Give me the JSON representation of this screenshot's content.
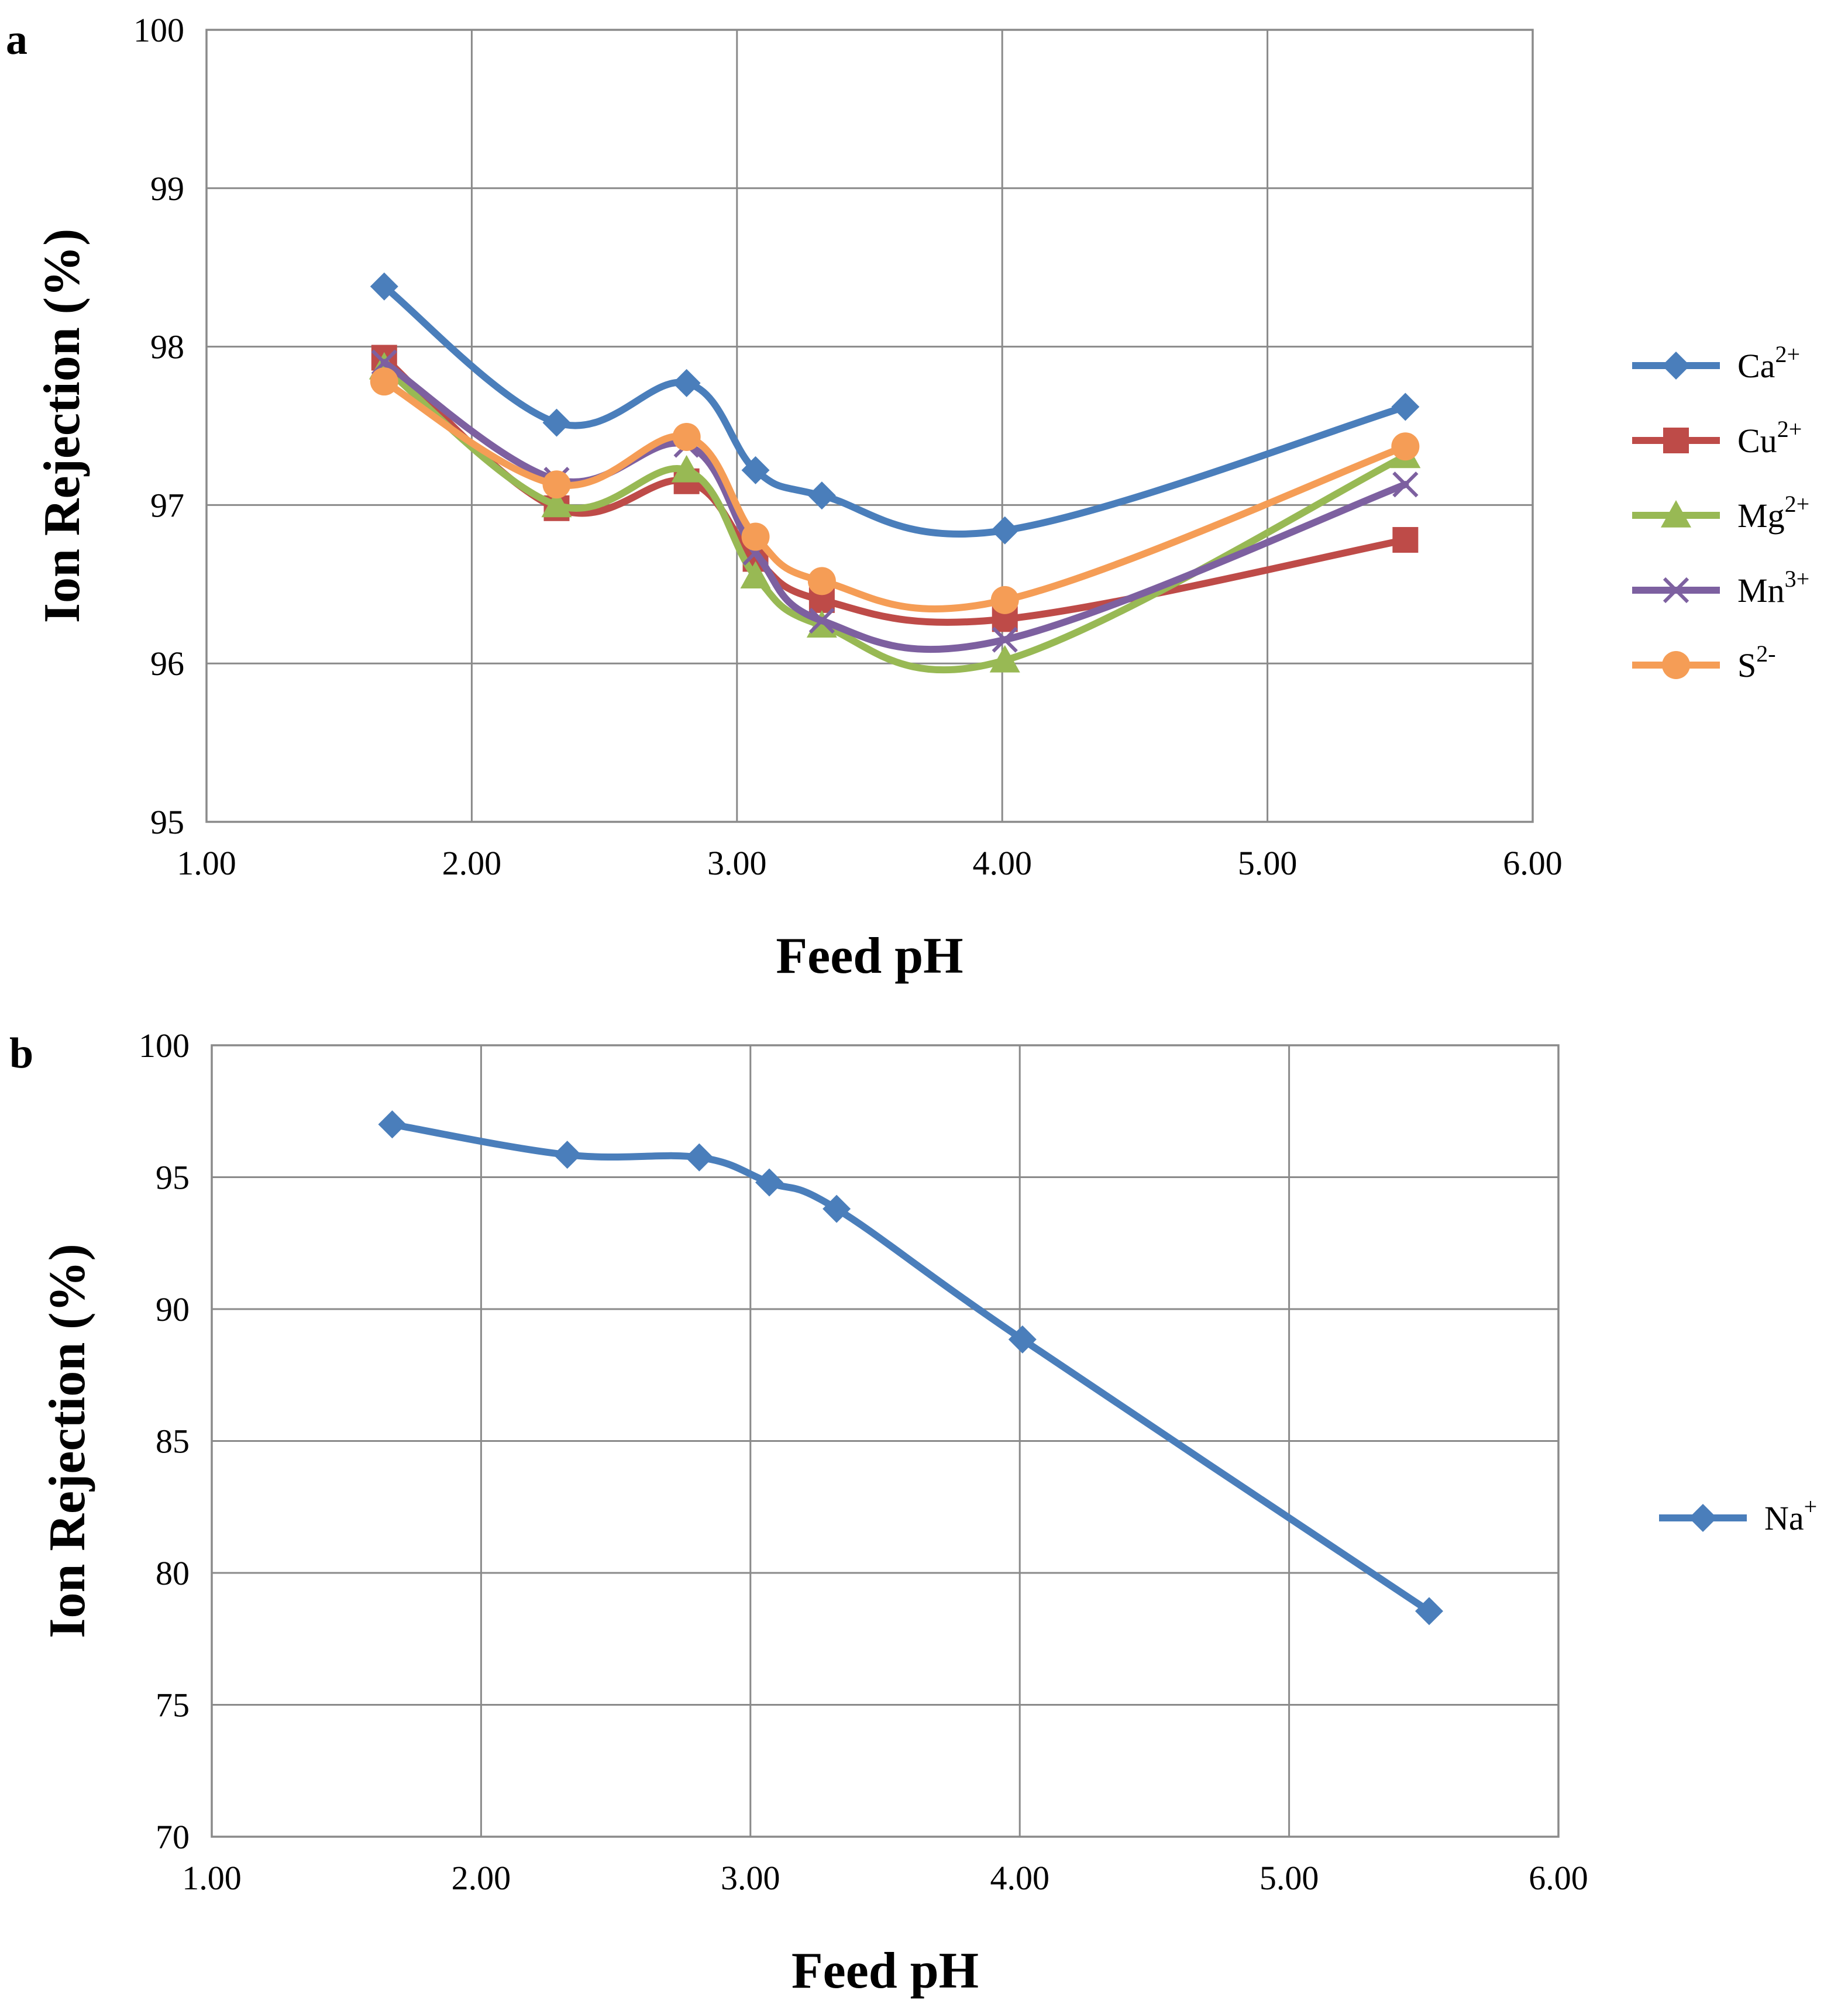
{
  "chart_data": [
    {
      "panel": "a",
      "type": "line",
      "xlabel": "Feed pH",
      "ylabel": "Ion Rejection (%)",
      "xlim": [
        1.0,
        6.0
      ],
      "ylim": [
        95,
        100
      ],
      "x_ticks": [
        "1.00",
        "2.00",
        "3.00",
        "4.00",
        "5.00",
        "6.00"
      ],
      "y_ticks": [
        "95",
        "96",
        "97",
        "98",
        "99",
        "100"
      ],
      "grid": true,
      "legend_position": "right",
      "x": [
        1.67,
        2.32,
        2.81,
        3.07,
        3.32,
        4.01,
        5.52
      ],
      "series": [
        {
          "name": "Ca",
          "sup": "2+",
          "color": "#4a7ebb",
          "marker": "diamond",
          "values": [
            98.38,
            97.52,
            97.77,
            97.22,
            97.06,
            96.84,
            97.62
          ]
        },
        {
          "name": "Cu",
          "sup": "2+",
          "color": "#be4b48",
          "marker": "square",
          "values": [
            97.93,
            96.98,
            97.15,
            96.66,
            96.4,
            96.28,
            96.78
          ]
        },
        {
          "name": "Mg",
          "sup": "2+",
          "color": "#98b954",
          "marker": "triangle",
          "values": [
            97.87,
            97.0,
            97.22,
            96.55,
            96.24,
            96.02,
            97.31
          ]
        },
        {
          "name": "Mn",
          "sup": "3+",
          "color": "#7d60a0",
          "marker": "x",
          "values": [
            97.9,
            97.16,
            97.38,
            96.7,
            96.27,
            96.15,
            97.13
          ]
        },
        {
          "name": "S",
          "sup": "2-",
          "color": "#f59d56",
          "marker": "circle",
          "values": [
            97.78,
            97.13,
            97.43,
            96.8,
            96.52,
            96.4,
            97.37
          ]
        }
      ]
    },
    {
      "panel": "b",
      "type": "line",
      "xlabel": "Feed pH",
      "ylabel": "Ion Rejection (%)",
      "xlim": [
        1.0,
        6.0
      ],
      "ylim": [
        70,
        100
      ],
      "x_ticks": [
        "1.00",
        "2.00",
        "3.00",
        "4.00",
        "5.00",
        "6.00"
      ],
      "y_ticks": [
        "70",
        "75",
        "80",
        "85",
        "90",
        "95",
        "100"
      ],
      "grid": true,
      "legend_position": "right",
      "x": [
        1.67,
        2.32,
        2.81,
        3.07,
        3.32,
        4.01,
        5.52
      ],
      "series": [
        {
          "name": "Na",
          "sup": "+",
          "color": "#4a7ebb",
          "marker": "diamond",
          "values": [
            97.0,
            95.85,
            95.75,
            94.8,
            93.8,
            88.85,
            78.55
          ]
        }
      ]
    }
  ]
}
